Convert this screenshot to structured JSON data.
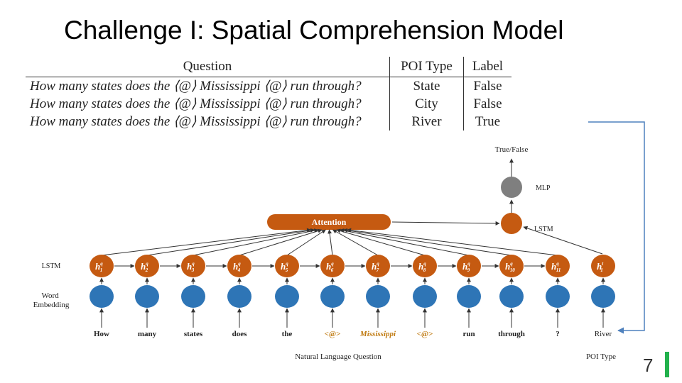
{
  "slide": {
    "title": "Challenge I: Spatial Comprehension Model",
    "page_number": "7"
  },
  "table": {
    "headers": {
      "question": "Question",
      "poi_type": "POI Type",
      "label": "Label"
    },
    "rows": [
      {
        "question": "How many states does the ⟨@⟩ Mississippi ⟨@⟩ run through?",
        "poi_type": "State",
        "label": "False"
      },
      {
        "question": "How many states does the ⟨@⟩ Mississippi ⟨@⟩ run through?",
        "poi_type": "City",
        "label": "False"
      },
      {
        "question": "How many states does the ⟨@⟩ Mississippi ⟨@⟩ run through?",
        "poi_type": "River",
        "label": "True"
      }
    ]
  },
  "diagram": {
    "output_label": "True/False",
    "mlp_label": "MLP",
    "attention_label": "Attention",
    "lstm_right_label": "LSTM",
    "lstm_row_label": "LSTM",
    "embedding_label": "Word Embedding",
    "hidden_states": [
      {
        "sup": "q",
        "sub": "1"
      },
      {
        "sup": "q",
        "sub": "2"
      },
      {
        "sup": "q",
        "sub": "3"
      },
      {
        "sup": "q",
        "sub": "4"
      },
      {
        "sup": "q",
        "sub": "5"
      },
      {
        "sup": "q",
        "sub": "6"
      },
      {
        "sup": "q",
        "sub": "7"
      },
      {
        "sup": "q",
        "sub": "8"
      },
      {
        "sup": "q",
        "sub": "9"
      },
      {
        "sup": "q",
        "sub": "10"
      },
      {
        "sup": "q",
        "sub": "11"
      },
      {
        "sup": "t",
        "sub": "1"
      }
    ],
    "words": [
      "How",
      "many",
      "states",
      "does",
      "the",
      "<@>",
      "Mississippi",
      "<@>",
      "run",
      "through",
      "?",
      "River"
    ],
    "question_caption": "Natural Language Question",
    "poi_caption": "POI Type",
    "colors": {
      "orange": "#c55a11",
      "orange_word": "#c07a10",
      "blue": "#2e75b6",
      "gray": "#7f7f7f",
      "connector": "#4f81bd"
    }
  }
}
